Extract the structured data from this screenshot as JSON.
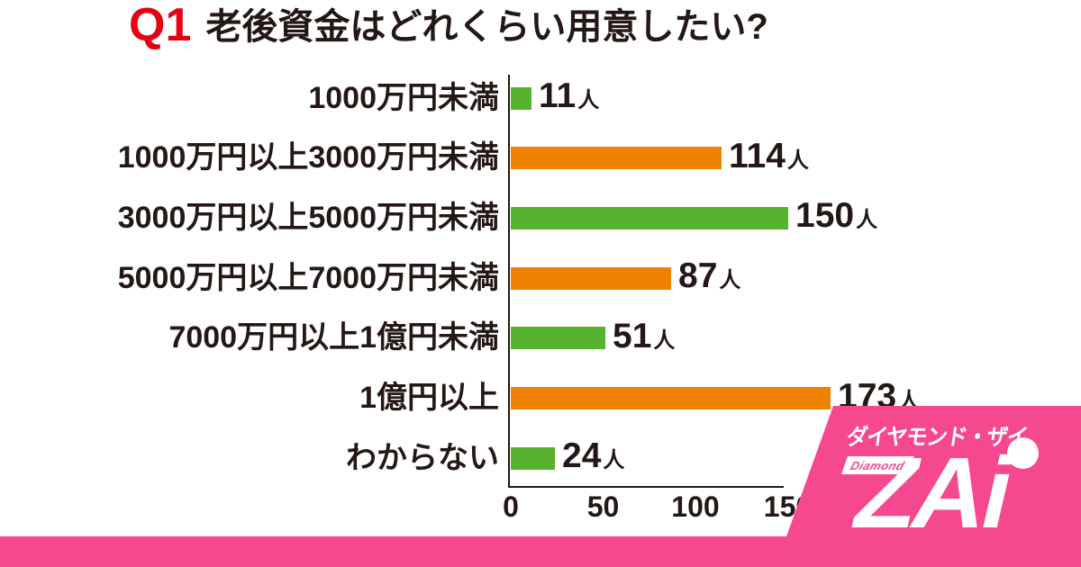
{
  "title": {
    "q_number": "Q1",
    "text": "老後資金はどれくらい用意したい?"
  },
  "chart_data": {
    "type": "bar",
    "orientation": "horizontal",
    "title": "Q1 老後資金はどれくらい用意したい?",
    "categories": [
      "1000万円未満",
      "1000万円以上3000万円未満",
      "3000万円以上5000万円未満",
      "5000万円以上7000万円未満",
      "7000万円以上1億円未満",
      "1億円以上",
      "わからない"
    ],
    "values": [
      11,
      114,
      150,
      87,
      51,
      173,
      24
    ],
    "unit": "人",
    "bar_colors": [
      "#57b230",
      "#ef8200",
      "#57b230",
      "#ef8200",
      "#57b230",
      "#ef8200",
      "#57b230"
    ],
    "x_ticks": [
      0,
      50,
      100,
      150
    ],
    "xlim": [
      0,
      175
    ],
    "grid": false,
    "legend": false
  },
  "logo": {
    "tagline": "ダイヤモンド・ザイ",
    "sub_label": "Diamond",
    "brand": "ZAi"
  },
  "colors": {
    "green": "#57b230",
    "orange": "#ef8200",
    "pink": "#f5488f",
    "accent_red": "#e60012",
    "ink": "#231815"
  }
}
